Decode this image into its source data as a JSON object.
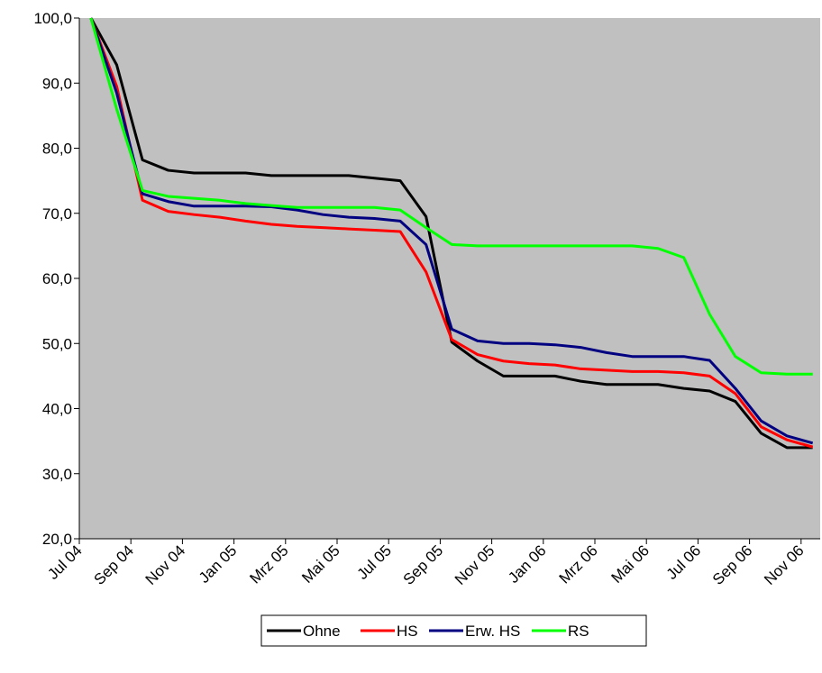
{
  "chart_data": {
    "type": "line",
    "categories": [
      "Jul 04",
      null,
      "Sep 04",
      null,
      "Nov 04",
      null,
      "Jan 05",
      null,
      "Mrz 05",
      null,
      "Mai 05",
      null,
      "Jul 05",
      null,
      "Sep 05",
      null,
      "Nov 05",
      null,
      "Jan 06",
      null,
      "Mrz 06",
      null,
      "Mai 06",
      null,
      "Jul 06",
      null,
      "Sep 06",
      null,
      "Nov 06"
    ],
    "series": [
      {
        "name": "Ohne",
        "color": "#000000",
        "values": [
          100,
          92.8,
          78.2,
          76.6,
          76.2,
          76.2,
          76.2,
          75.8,
          75.8,
          75.8,
          75.8,
          75.4,
          75.0,
          69.5,
          50.2,
          47.3,
          45.0,
          45.0,
          45.0,
          44.2,
          43.7,
          43.7,
          43.7,
          43.1,
          42.7,
          41.1,
          36.2,
          34.0,
          34.0
        ]
      },
      {
        "name": "HS",
        "color": "#ff0000",
        "values": [
          100,
          89.5,
          72.0,
          70.3,
          69.8,
          69.4,
          68.8,
          68.3,
          68.0,
          67.8,
          67.6,
          67.4,
          67.2,
          61.0,
          50.6,
          48.3,
          47.3,
          46.9,
          46.7,
          46.1,
          45.9,
          45.7,
          45.7,
          45.5,
          45.0,
          42.3,
          37.2,
          35.2,
          34.1
        ]
      },
      {
        "name": "Erw. HS",
        "color": "#000080",
        "values": [
          100,
          88.5,
          73.0,
          71.8,
          71.1,
          71.1,
          71.1,
          71.0,
          70.5,
          69.8,
          69.4,
          69.2,
          68.8,
          65.2,
          52.2,
          50.4,
          50.0,
          50.0,
          49.8,
          49.4,
          48.6,
          48.0,
          48.0,
          48.0,
          47.4,
          43.1,
          38.1,
          35.8,
          34.7
        ]
      },
      {
        "name": "RS",
        "color": "#00ff00",
        "values": [
          100,
          86.0,
          73.5,
          72.6,
          72.3,
          72.0,
          71.5,
          71.2,
          70.9,
          70.9,
          70.9,
          70.9,
          70.5,
          67.8,
          65.2,
          65.0,
          65.0,
          65.0,
          65.0,
          65.0,
          65.0,
          65.0,
          64.6,
          63.2,
          54.5,
          48.0,
          45.5,
          45.3,
          45.3
        ]
      }
    ],
    "ylim": [
      20,
      100
    ],
    "yticks": [
      {
        "value": 20,
        "label": "20,0"
      },
      {
        "value": 30,
        "label": "30,0"
      },
      {
        "value": 40,
        "label": "40,0"
      },
      {
        "value": 50,
        "label": "50,0"
      },
      {
        "value": 60,
        "label": "60,0"
      },
      {
        "value": 70,
        "label": "70,0"
      },
      {
        "value": 80,
        "label": "80,0"
      },
      {
        "value": 90,
        "label": "90,0"
      },
      {
        "value": 100,
        "label": "100,0"
      }
    ],
    "legend": "bottom"
  }
}
